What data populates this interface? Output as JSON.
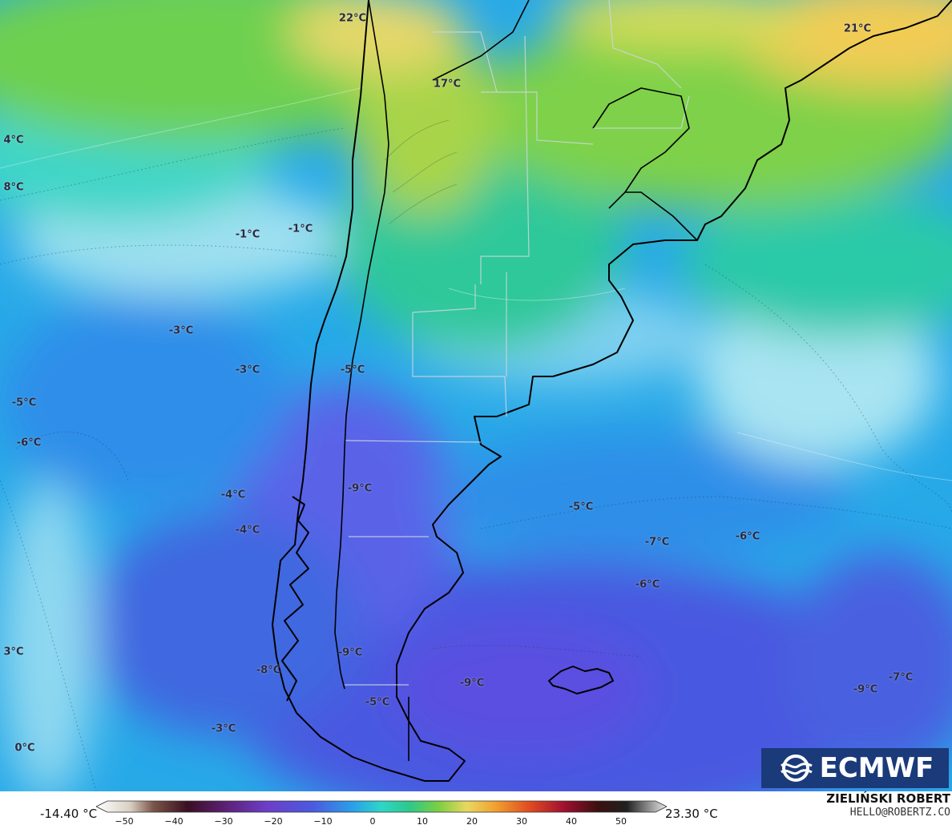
{
  "map": {
    "labels": [
      {
        "text": "22°C"
      },
      {
        "text": "21°C"
      },
      {
        "text": "17°C"
      },
      {
        "text": "4°C"
      },
      {
        "text": "8°C"
      },
      {
        "text": "-1°C"
      },
      {
        "text": "-1°C"
      },
      {
        "text": "-3°C"
      },
      {
        "text": "-3°C"
      },
      {
        "text": "-5°C"
      },
      {
        "text": "-5°C"
      },
      {
        "text": "-6°C"
      },
      {
        "text": "-9°C"
      },
      {
        "text": "-4°C"
      },
      {
        "text": "-4°C"
      },
      {
        "text": "-5°C"
      },
      {
        "text": "-7°C"
      },
      {
        "text": "-6°C"
      },
      {
        "text": "-6°C"
      },
      {
        "text": "3°C"
      },
      {
        "text": "-9°C"
      },
      {
        "text": "-8°C"
      },
      {
        "text": "-9°C"
      },
      {
        "text": "-5°C"
      },
      {
        "text": "-3°C"
      },
      {
        "text": "0°C"
      },
      {
        "text": "-9°C"
      },
      {
        "text": "-7°C"
      }
    ]
  },
  "logo": {
    "text": "ECMWF"
  },
  "legend": {
    "min_label": "-14.40 °C",
    "max_label": "23.30 °C",
    "ticks": [
      "−50",
      "−40",
      "−30",
      "−20",
      "−10",
      "0",
      "10",
      "20",
      "30",
      "40",
      "50"
    ]
  },
  "credit": {
    "name": "ZIELIŃSKI ROBERT",
    "email": "HELLO@ROBERTZ.CO"
  }
}
